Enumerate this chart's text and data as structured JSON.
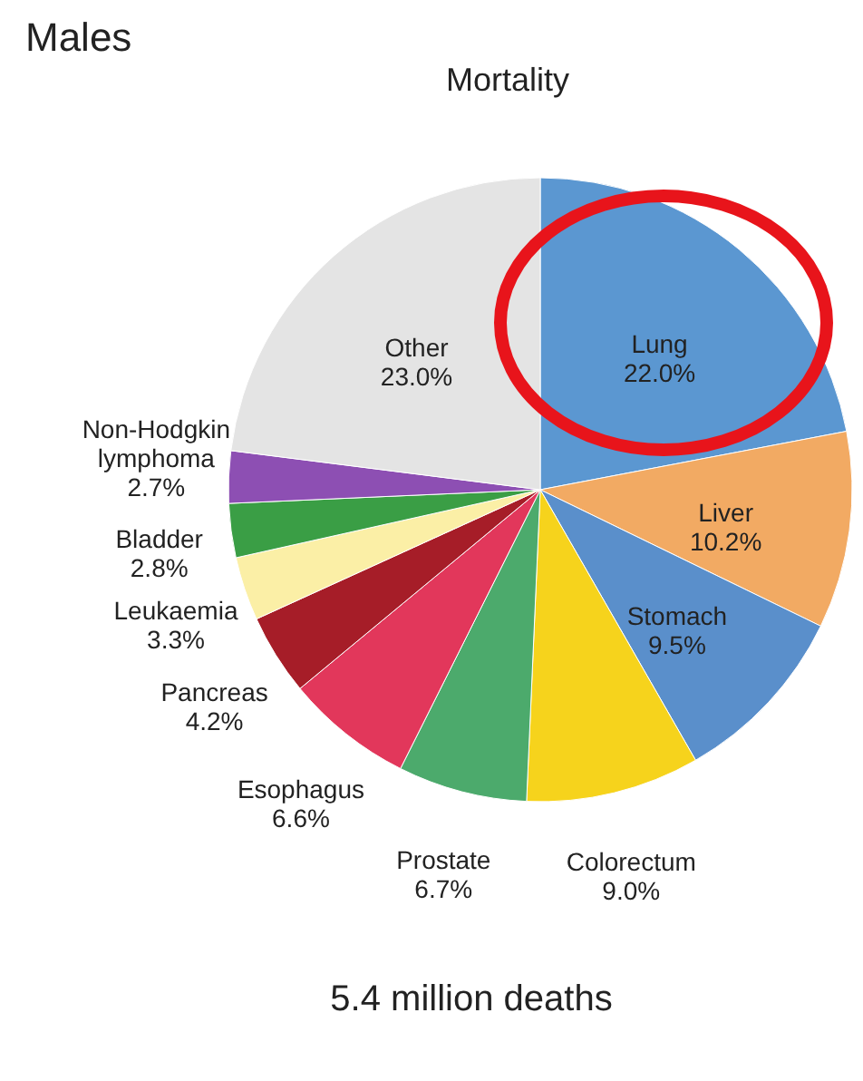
{
  "chart_data": {
    "type": "pie",
    "title": "Males",
    "subtitle": "Mortality",
    "categories": [
      "Lung",
      "Liver",
      "Stomach",
      "Colorectum",
      "Prostate",
      "Esophagus",
      "Pancreas",
      "Leukaemia",
      "Bladder",
      "Non-Hodgkin lymphoma",
      "Other"
    ],
    "values": [
      22.0,
      10.2,
      9.5,
      9.0,
      6.7,
      6.6,
      4.2,
      3.3,
      2.8,
      2.7,
      23.0
    ],
    "value_labels": [
      "22.0%",
      "10.2%",
      "9.5%",
      "9.0%",
      "6.7%",
      "6.6%",
      "4.2%",
      "3.3%",
      "2.8%",
      "2.7%",
      "23.0%"
    ],
    "colors": [
      "#5b97d1",
      "#f2aa63",
      "#5a8fcb",
      "#f6d31c",
      "#4caa6c",
      "#e2375b",
      "#a61d28",
      "#fbefa6",
      "#3a9e45",
      "#8d4fb3",
      "#e4e4e4"
    ],
    "annotations": [
      "5.4 million deaths"
    ]
  }
}
